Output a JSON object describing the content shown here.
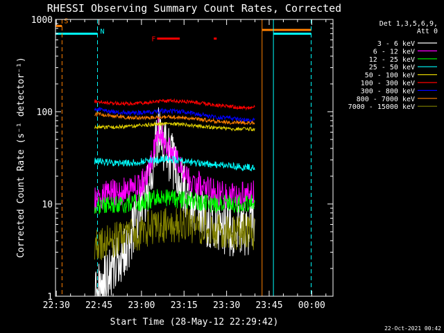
{
  "chart_data": {
    "type": "line",
    "title": "RHESSI Observing Summary Count Rates, Corrected",
    "xlabel": "Start Time (28-May-12 22:29:42)",
    "ylabel": "Corrected Count Rate (s⁻¹ detector⁻¹)",
    "yscale": "log",
    "ylim": [
      1,
      1000
    ],
    "xlim_minutes_after_2230": [
      -0.3,
      97.5
    ],
    "x_ticks": [
      {
        "label": "22:30",
        "minute": 0
      },
      {
        "label": "22:45",
        "minute": 15
      },
      {
        "label": "23:00",
        "minute": 30
      },
      {
        "label": "23:15",
        "minute": 45
      },
      {
        "label": "23:30",
        "minute": 60
      },
      {
        "label": "23:45",
        "minute": 75
      },
      {
        "label": "00:00",
        "minute": 90
      }
    ],
    "y_ticks": [
      {
        "label": "1",
        "value": 1
      },
      {
        "label": "10",
        "value": 10
      },
      {
        "label": "100",
        "value": 100
      },
      {
        "label": "1000",
        "value": 1000
      }
    ],
    "legend": {
      "placement": "right",
      "header": [
        "Det 1,3,5,6,9,",
        "Att 0"
      ],
      "entries": [
        {
          "label": "3 - 6 keV",
          "color": "#ffffff"
        },
        {
          "label": "6 - 12 keV",
          "color": "#ff00ff"
        },
        {
          "label": "12 - 25 keV",
          "color": "#00ff00"
        },
        {
          "label": "25 - 50 keV",
          "color": "#00ffff"
        },
        {
          "label": "50 - 100 keV",
          "color": "#e0d000"
        },
        {
          "label": "100 - 300 keV",
          "color": "#ff0000"
        },
        {
          "label": "300 - 800 keV",
          "color": "#0000ff"
        },
        {
          "label": "800 - 7000 keV",
          "color": "#ff8000"
        },
        {
          "label": "7000 - 15000 keV",
          "color": "#808000"
        }
      ]
    },
    "series": [
      {
        "name": "3 - 6 keV",
        "color": "#ffffff",
        "noise": 0.3,
        "points": [
          [
            13.5,
            1
          ],
          [
            15,
            1.2
          ],
          [
            17,
            1.4
          ],
          [
            20,
            2.2
          ],
          [
            24,
            3.0
          ],
          [
            27,
            5
          ],
          [
            29,
            8
          ],
          [
            31,
            10
          ],
          [
            33,
            18
          ],
          [
            35,
            40
          ],
          [
            36,
            60
          ],
          [
            37,
            50
          ],
          [
            39,
            38
          ],
          [
            42,
            25
          ],
          [
            45,
            15
          ],
          [
            48,
            10
          ],
          [
            52,
            7
          ],
          [
            56,
            6
          ],
          [
            60,
            5.5
          ],
          [
            64,
            5
          ],
          [
            68,
            5.2
          ],
          [
            70,
            7
          ]
        ]
      },
      {
        "name": "6 - 12 keV",
        "color": "#ff00ff",
        "noise": 0.15,
        "points": [
          [
            13.5,
            11
          ],
          [
            18,
            13
          ],
          [
            22,
            13.5
          ],
          [
            26,
            14
          ],
          [
            29,
            15
          ],
          [
            31,
            18
          ],
          [
            33,
            25
          ],
          [
            35,
            50
          ],
          [
            36,
            68
          ],
          [
            37,
            55
          ],
          [
            39,
            42
          ],
          [
            42,
            30
          ],
          [
            45,
            22
          ],
          [
            48,
            18
          ],
          [
            52,
            15
          ],
          [
            56,
            13
          ],
          [
            60,
            12.5
          ],
          [
            64,
            12
          ],
          [
            70,
            13
          ]
        ]
      },
      {
        "name": "12 - 25 keV",
        "color": "#00ff00",
        "noise": 0.1,
        "points": [
          [
            13.5,
            9.5
          ],
          [
            20,
            10
          ],
          [
            26,
            10
          ],
          [
            30,
            10.5
          ],
          [
            33,
            11
          ],
          [
            36,
            12
          ],
          [
            39,
            11.5
          ],
          [
            45,
            11
          ],
          [
            50,
            10.5
          ],
          [
            56,
            10
          ],
          [
            62,
            10
          ],
          [
            70,
            10
          ]
        ]
      },
      {
        "name": "25 - 50 keV",
        "color": "#00ffff",
        "noise": 0.04,
        "points": [
          [
            13.5,
            29
          ],
          [
            20,
            28
          ],
          [
            26,
            28
          ],
          [
            32,
            29
          ],
          [
            38,
            31
          ],
          [
            42,
            30
          ],
          [
            48,
            28
          ],
          [
            54,
            27
          ],
          [
            60,
            26
          ],
          [
            66,
            25
          ],
          [
            70,
            25
          ]
        ]
      },
      {
        "name": "50 - 100 keV",
        "color": "#e0d000",
        "noise": 0.02,
        "points": [
          [
            13.5,
            68
          ],
          [
            20,
            68
          ],
          [
            26,
            69
          ],
          [
            32,
            72
          ],
          [
            38,
            74
          ],
          [
            44,
            73
          ],
          [
            50,
            70
          ],
          [
            56,
            67
          ],
          [
            62,
            65
          ],
          [
            70,
            65
          ]
        ]
      },
      {
        "name": "100 - 300 keV",
        "color": "#ff0000",
        "noise": 0.02,
        "points": [
          [
            13.5,
            130
          ],
          [
            20,
            124
          ],
          [
            26,
            122
          ],
          [
            32,
            126
          ],
          [
            38,
            131
          ],
          [
            44,
            130
          ],
          [
            50,
            125
          ],
          [
            56,
            118
          ],
          [
            62,
            113
          ],
          [
            68,
            110
          ],
          [
            70,
            115
          ]
        ]
      },
      {
        "name": "300 - 800 keV",
        "color": "#0000ff",
        "noise": 0.025,
        "points": [
          [
            13.5,
            108
          ],
          [
            20,
            100
          ],
          [
            26,
            97
          ],
          [
            32,
            98
          ],
          [
            38,
            102
          ],
          [
            44,
            100
          ],
          [
            50,
            94
          ],
          [
            56,
            88
          ],
          [
            62,
            84
          ],
          [
            68,
            80
          ],
          [
            70,
            82
          ]
        ]
      },
      {
        "name": "800 - 7000 keV",
        "color": "#ff8000",
        "noise": 0.02,
        "points": [
          [
            13.5,
            95
          ],
          [
            20,
            90
          ],
          [
            26,
            86
          ],
          [
            32,
            86
          ],
          [
            38,
            88
          ],
          [
            44,
            87
          ],
          [
            50,
            83
          ],
          [
            56,
            79
          ],
          [
            62,
            76
          ],
          [
            70,
            76
          ]
        ]
      },
      {
        "name": "7000 - 15000 keV",
        "color": "#808000",
        "noise": 0.2,
        "points": [
          [
            13.5,
            3.5
          ],
          [
            20,
            4
          ],
          [
            26,
            4.5
          ],
          [
            30,
            5
          ],
          [
            34,
            5.5
          ],
          [
            40,
            6
          ],
          [
            46,
            6
          ],
          [
            52,
            5.5
          ],
          [
            58,
            5
          ],
          [
            64,
            5
          ],
          [
            70,
            5
          ]
        ]
      }
    ],
    "flags": [
      {
        "label": "S",
        "color": "#ff8000",
        "level": 850,
        "segments": [
          [
            -0.3,
            2
          ]
        ]
      },
      {
        "label": "N",
        "color": "#00ffff",
        "level": 700,
        "segments": [
          [
            -0.3,
            14.5
          ],
          [
            76.5,
            89.8
          ]
        ]
      },
      {
        "label": "",
        "color": "#ff8000",
        "level": 770,
        "segments": [
          [
            72.5,
            89.8
          ]
        ]
      },
      {
        "label": "F",
        "color": "#ff0000",
        "level": 620,
        "segments": [
          [
            35.5,
            43.5
          ],
          [
            55.5,
            56.5
          ]
        ]
      }
    ],
    "vlines": [
      {
        "minute": 2,
        "color": "#ff8000",
        "style": "dashed"
      },
      {
        "minute": 14.5,
        "color": "#00ffff",
        "style": "dashed"
      },
      {
        "minute": 72.5,
        "color": "#ff8000",
        "style": "solid"
      },
      {
        "minute": 76.5,
        "color": "#00ffff",
        "style": "solid"
      },
      {
        "minute": 89.8,
        "color": "#00ffff",
        "style": "dashed"
      }
    ],
    "grid": false,
    "footer": "22-Oct-2021 00:42"
  }
}
